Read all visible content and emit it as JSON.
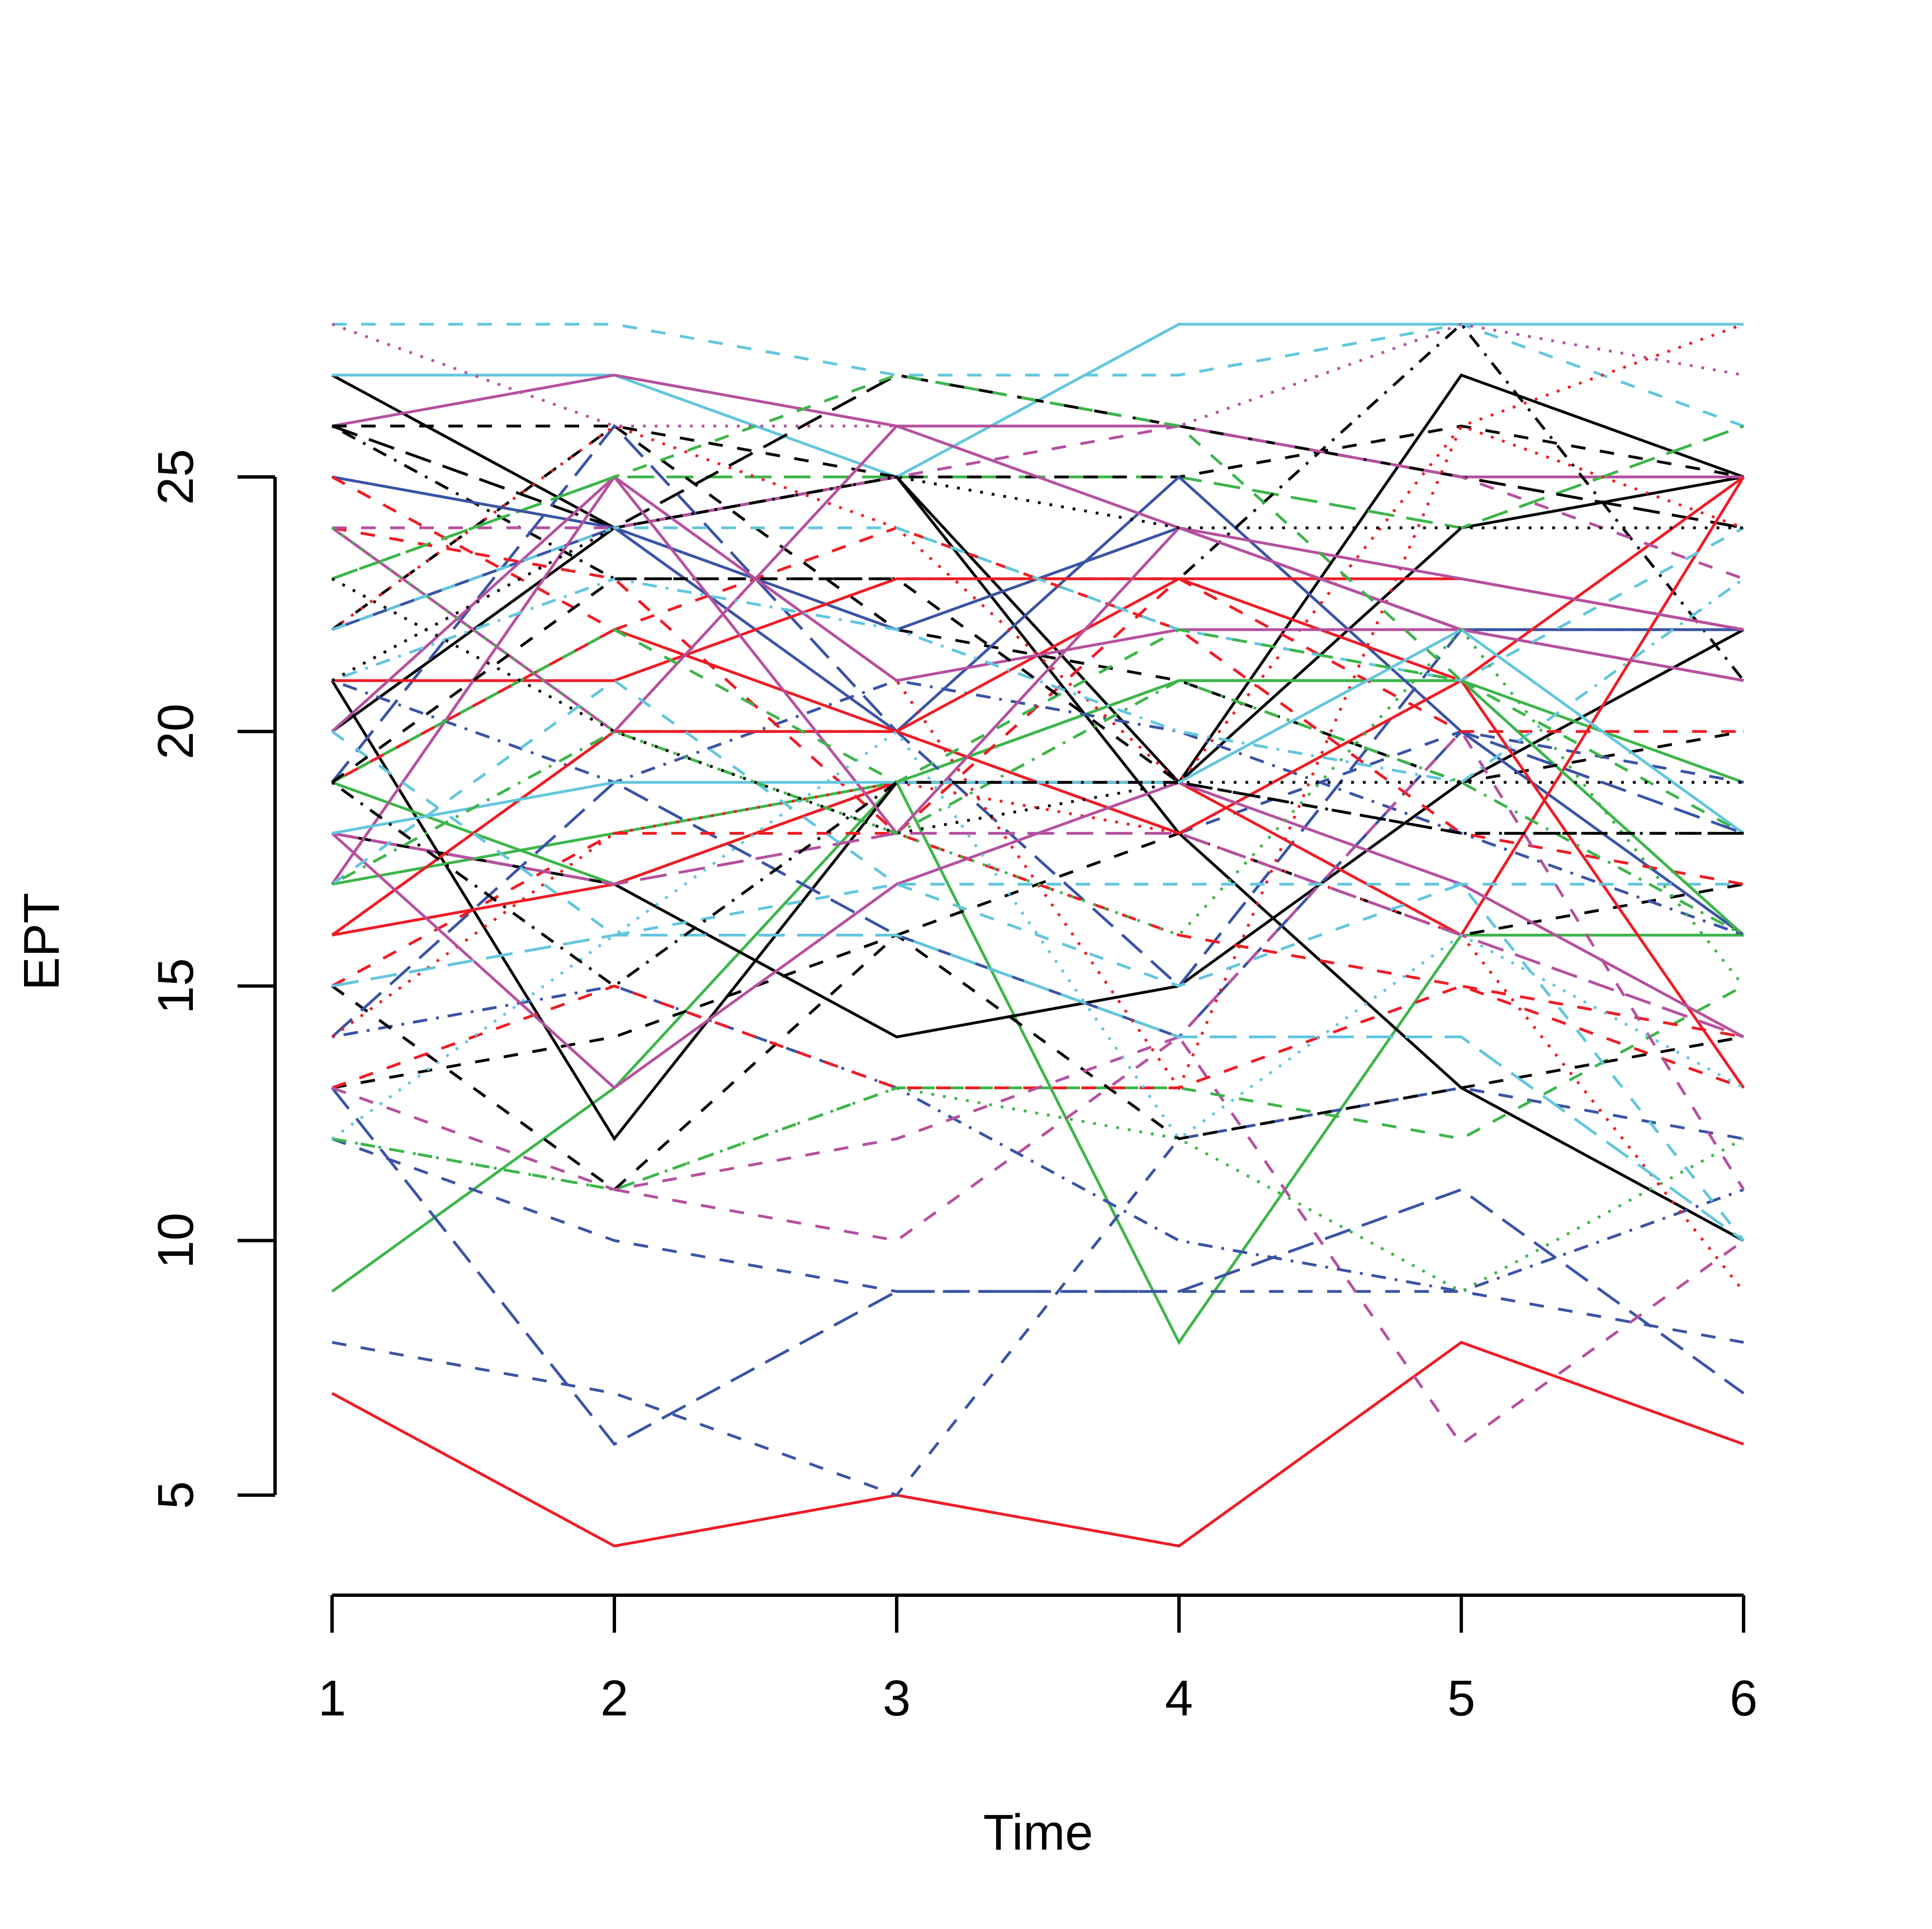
{
  "chart_data": {
    "type": "line",
    "title": "",
    "xlabel": "Time",
    "ylabel": "EPT",
    "x": [
      1,
      2,
      3,
      4,
      5,
      6
    ],
    "xlim": [
      1,
      6
    ],
    "ylim": [
      4,
      28
    ],
    "x_ticks": [
      "1",
      "2",
      "3",
      "4",
      "5",
      "6"
    ],
    "y_ticks": [
      "5",
      "10",
      "15",
      "20",
      "25"
    ],
    "grid": false,
    "legend": "none",
    "palette": [
      "#000000",
      "#EE1C25",
      "#3DB54A",
      "#3A53A4",
      "#62C6DD",
      "#B5509F"
    ],
    "line_types": [
      "solid",
      "solid",
      "dashed",
      "dotted",
      "dotdash",
      "longdash"
    ],
    "series": [
      {
        "values": [
          7,
          4,
          5,
          4,
          8,
          6
        ],
        "col": 1,
        "lty": 1
      },
      {
        "values": [
          9,
          13,
          19,
          8,
          16,
          16
        ],
        "col": 2,
        "lty": 1
      },
      {
        "values": [
          21,
          12,
          19,
          19,
          24,
          25
        ],
        "col": 0,
        "lty": 1
      },
      {
        "values": [
          18,
          17,
          14,
          15,
          19,
          22
        ],
        "col": 0,
        "lty": 1
      },
      {
        "values": [
          27,
          24,
          25,
          18,
          13,
          10
        ],
        "col": 0,
        "lty": 1
      },
      {
        "values": [
          27,
          27,
          25,
          28,
          28,
          28
        ],
        "col": 4,
        "lty": 1
      },
      {
        "values": [
          28,
          28,
          27,
          27,
          28,
          26
        ],
        "col": 4,
        "lty": 2
      },
      {
        "values": [
          8,
          7,
          5,
          12,
          13,
          12
        ],
        "col": 3,
        "lty": 2
      },
      {
        "values": [
          13,
          6,
          9,
          9,
          11,
          7
        ],
        "col": 3,
        "lty": 5
      },
      {
        "values": [
          15,
          11,
          10,
          14,
          6,
          10
        ],
        "col": 5,
        "lty": 2
      },
      {
        "values": [
          12,
          10,
          9,
          9,
          9,
          8
        ],
        "col": 3,
        "lty": 2
      },
      {
        "values": [
          14,
          15,
          13,
          10,
          9,
          11
        ],
        "col": 3,
        "lty": 4
      },
      {
        "values": [
          20,
          24,
          25,
          19,
          27,
          25
        ],
        "col": 0,
        "lty": 1
      },
      {
        "values": [
          12,
          11,
          13,
          13,
          12,
          15
        ],
        "col": 2,
        "lty": 2
      },
      {
        "values": [
          26,
          27,
          26,
          26,
          25,
          25
        ],
        "col": 5,
        "lty": 1
      },
      {
        "values": [
          12,
          11,
          13,
          12,
          9,
          12
        ],
        "col": 2,
        "lty": 3
      },
      {
        "values": [
          19,
          17,
          19,
          21,
          21,
          16
        ],
        "col": 2,
        "lty": 1
      },
      {
        "values": [
          17,
          18,
          19,
          21,
          21,
          19
        ],
        "col": 2,
        "lty": 1
      },
      {
        "values": [
          23,
          25,
          25,
          25,
          24,
          26
        ],
        "col": 2,
        "lty": 5
      },
      {
        "values": [
          26,
          26,
          25,
          25,
          26,
          25
        ],
        "col": 0,
        "lty": 2
      },
      {
        "values": [
          26,
          24,
          27,
          26,
          25,
          24
        ],
        "col": 0,
        "lty": 5
      },
      {
        "values": [
          26,
          23,
          23,
          23,
          28,
          21
        ],
        "col": 0,
        "lty": 4
      },
      {
        "values": [
          22,
          26,
          22,
          21,
          19,
          20
        ],
        "col": 0,
        "lty": 2
      },
      {
        "values": [
          13,
          14,
          16,
          12,
          13,
          14
        ],
        "col": 0,
        "lty": 2
      },
      {
        "values": [
          15,
          11,
          16,
          18,
          16,
          17
        ],
        "col": 0,
        "lty": 2
      },
      {
        "values": [
          25,
          24,
          22,
          24,
          22,
          22
        ],
        "col": 3,
        "lty": 1
      },
      {
        "values": [
          22,
          24,
          20,
          25,
          20,
          16
        ],
        "col": 3,
        "lty": 1
      },
      {
        "values": [
          19,
          26,
          20,
          15,
          22,
          22
        ],
        "col": 3,
        "lty": 5
      },
      {
        "values": [
          16,
          20,
          20,
          18,
          20,
          19
        ],
        "col": 3,
        "lty": 2
      },
      {
        "values": [
          21,
          19,
          21,
          20,
          18,
          16
        ],
        "col": 3,
        "lty": 4
      },
      {
        "values": [
          14,
          19,
          16,
          14,
          20,
          18
        ],
        "col": 3,
        "lty": 5
      },
      {
        "values": [
          16,
          20,
          20,
          23,
          21,
          25
        ],
        "col": 1,
        "lty": 1
      },
      {
        "values": [
          21,
          21,
          23,
          23,
          23,
          22
        ],
        "col": 1,
        "lty": 1
      },
      {
        "values": [
          19,
          22,
          20,
          18,
          21,
          13
        ],
        "col": 1,
        "lty": 1
      },
      {
        "values": [
          16,
          17,
          19,
          19,
          16,
          25
        ],
        "col": 1,
        "lty": 1
      },
      {
        "values": [
          22,
          26,
          24,
          19,
          26,
          24
        ],
        "col": 1,
        "lty": 3
      },
      {
        "values": [
          17,
          25,
          21,
          13,
          26,
          28
        ],
        "col": 1,
        "lty": 3
      },
      {
        "values": [
          15,
          18,
          18,
          16,
          15,
          14
        ],
        "col": 1,
        "lty": 2
      },
      {
        "values": [
          14,
          18,
          19,
          18,
          16,
          9
        ],
        "col": 1,
        "lty": 3
      },
      {
        "values": [
          25,
          22,
          24,
          22,
          18,
          17
        ],
        "col": 1,
        "lty": 2
      },
      {
        "values": [
          24,
          23,
          18,
          23,
          20,
          20
        ],
        "col": 1,
        "lty": 2
      },
      {
        "values": [
          13,
          15,
          13,
          13,
          15,
          13
        ],
        "col": 1,
        "lty": 2
      },
      {
        "values": [
          20,
          25,
          21,
          22,
          22,
          21
        ],
        "col": 5,
        "lty": 1
      },
      {
        "values": [
          18,
          13,
          17,
          19,
          17,
          14
        ],
        "col": 5,
        "lty": 1
      },
      {
        "values": [
          24,
          20,
          26,
          24,
          23,
          22
        ],
        "col": 5,
        "lty": 1
      },
      {
        "values": [
          17,
          25,
          18,
          24,
          22,
          21
        ],
        "col": 5,
        "lty": 1
      },
      {
        "values": [
          28,
          26,
          26,
          26,
          28,
          27
        ],
        "col": 5,
        "lty": 3
      },
      {
        "values": [
          24,
          24,
          25,
          26,
          25,
          23
        ],
        "col": 5,
        "lty": 2
      },
      {
        "values": [
          13,
          11,
          12,
          14,
          20,
          11
        ],
        "col": 5,
        "lty": 2
      },
      {
        "values": [
          18,
          17,
          18,
          18,
          16,
          14
        ],
        "col": 5,
        "lty": 5
      },
      {
        "values": [
          18,
          19,
          19,
          19,
          22,
          18
        ],
        "col": 4,
        "lty": 1
      },
      {
        "values": [
          15,
          16,
          16,
          14,
          14,
          10
        ],
        "col": 4,
        "lty": 5
      },
      {
        "values": [
          21,
          23,
          22,
          20,
          19,
          23
        ],
        "col": 4,
        "lty": 4
      },
      {
        "values": [
          17,
          21,
          17,
          15,
          17,
          10
        ],
        "col": 4,
        "lty": 2
      },
      {
        "values": [
          12,
          16,
          20,
          12,
          16,
          13
        ],
        "col": 4,
        "lty": 3
      },
      {
        "values": [
          22,
          24,
          24,
          22,
          21,
          24
        ],
        "col": 4,
        "lty": 2
      },
      {
        "values": [
          20,
          16,
          17,
          17,
          17,
          17
        ],
        "col": 4,
        "lty": 2
      },
      {
        "values": [
          19,
          22,
          19,
          22,
          21,
          18
        ],
        "col": 2,
        "lty": 2
      },
      {
        "values": [
          23,
          25,
          27,
          26,
          21,
          16
        ],
        "col": 2,
        "lty": 2
      },
      {
        "values": [
          24,
          20,
          18,
          16,
          22,
          15
        ],
        "col": 2,
        "lty": 3
      },
      {
        "values": [
          17,
          20,
          18,
          21,
          19,
          16
        ],
        "col": 2,
        "lty": 4
      },
      {
        "values": [
          23,
          20,
          18,
          19,
          19,
          19
        ],
        "col": 0,
        "lty": 3
      },
      {
        "values": [
          21,
          24,
          25,
          24,
          24,
          24
        ],
        "col": 0,
        "lty": 3
      },
      {
        "values": [
          19,
          23,
          23,
          19,
          18,
          18
        ],
        "col": 0,
        "lty": 2
      },
      {
        "values": [
          19,
          15,
          19,
          19,
          18,
          18
        ],
        "col": 0,
        "lty": 4
      }
    ]
  }
}
